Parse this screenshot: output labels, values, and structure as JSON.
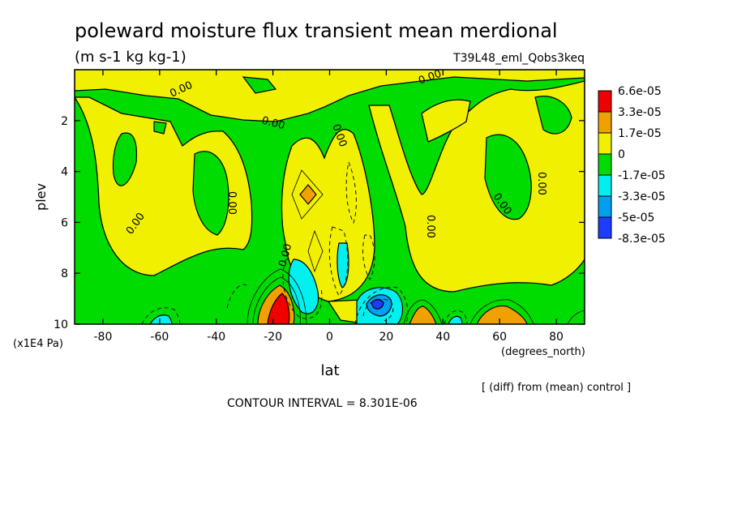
{
  "chart_data": {
    "type": "heatmap",
    "title": "poleward moisture flux transient mean merdional",
    "units": "(m s-1 kg kg-1)",
    "experiment": "T39L48_eml_Qobs3keq",
    "xlabel": "lat",
    "x_units": "(degrees_north)",
    "ylabel": "plev",
    "y_units": "(x1E4 Pa)",
    "xlim": [
      -90,
      90
    ],
    "ylim": [
      10,
      0
    ],
    "x_ticks": [
      "-80",
      "-60",
      "-40",
      "-20",
      "0",
      "20",
      "40",
      "60",
      "80"
    ],
    "y_ticks": [
      "2",
      "4",
      "6",
      "8",
      "10"
    ],
    "contour_interval_text": "CONTOUR INTERVAL = 8.301E-06",
    "note": "[ (diff) from (mean) control ]",
    "contour_label": "0.00",
    "colorbar": {
      "labels": [
        "6.6e-05",
        "3.3e-05",
        "1.7e-05",
        "0",
        "-1.7e-05",
        "-3.3e-05",
        "-5e-05",
        "-8.3e-05"
      ],
      "colors": [
        "#f00000",
        "#f0a000",
        "#f0f000",
        "#00dc00",
        "#00f0f0",
        "#00a0f0",
        "#1e3cff",
        "#ff0000"
      ]
    },
    "levels": [
      -8.3e-05,
      -5e-05,
      -3.3e-05,
      -1.7e-05,
      0,
      1.7e-05,
      3.3e-05,
      6.6e-05
    ],
    "features": [
      {
        "lat": -18,
        "plev": 9.4,
        "value": 7.5e-05
      },
      {
        "lat": -12,
        "plev": 8.8,
        "value": -3.8e-05
      },
      {
        "lat": -8,
        "plev": 4.9,
        "value": 2e-05
      },
      {
        "lat": -5,
        "plev": 7.0,
        "value": 2e-05
      },
      {
        "lat": 15,
        "plev": 9.1,
        "value": -5.5e-05
      },
      {
        "lat": 6,
        "plev": 7.5,
        "value": -1.5e-05
      },
      {
        "lat": 32,
        "plev": 9.7,
        "value": 2.5e-05
      },
      {
        "lat": 58,
        "plev": 9.7,
        "value": 2.5e-05
      },
      {
        "lat": -55,
        "plev": 9.8,
        "value": -2e-05
      },
      {
        "lat": 45,
        "plev": 9.8,
        "value": -1.8e-05
      }
    ]
  }
}
